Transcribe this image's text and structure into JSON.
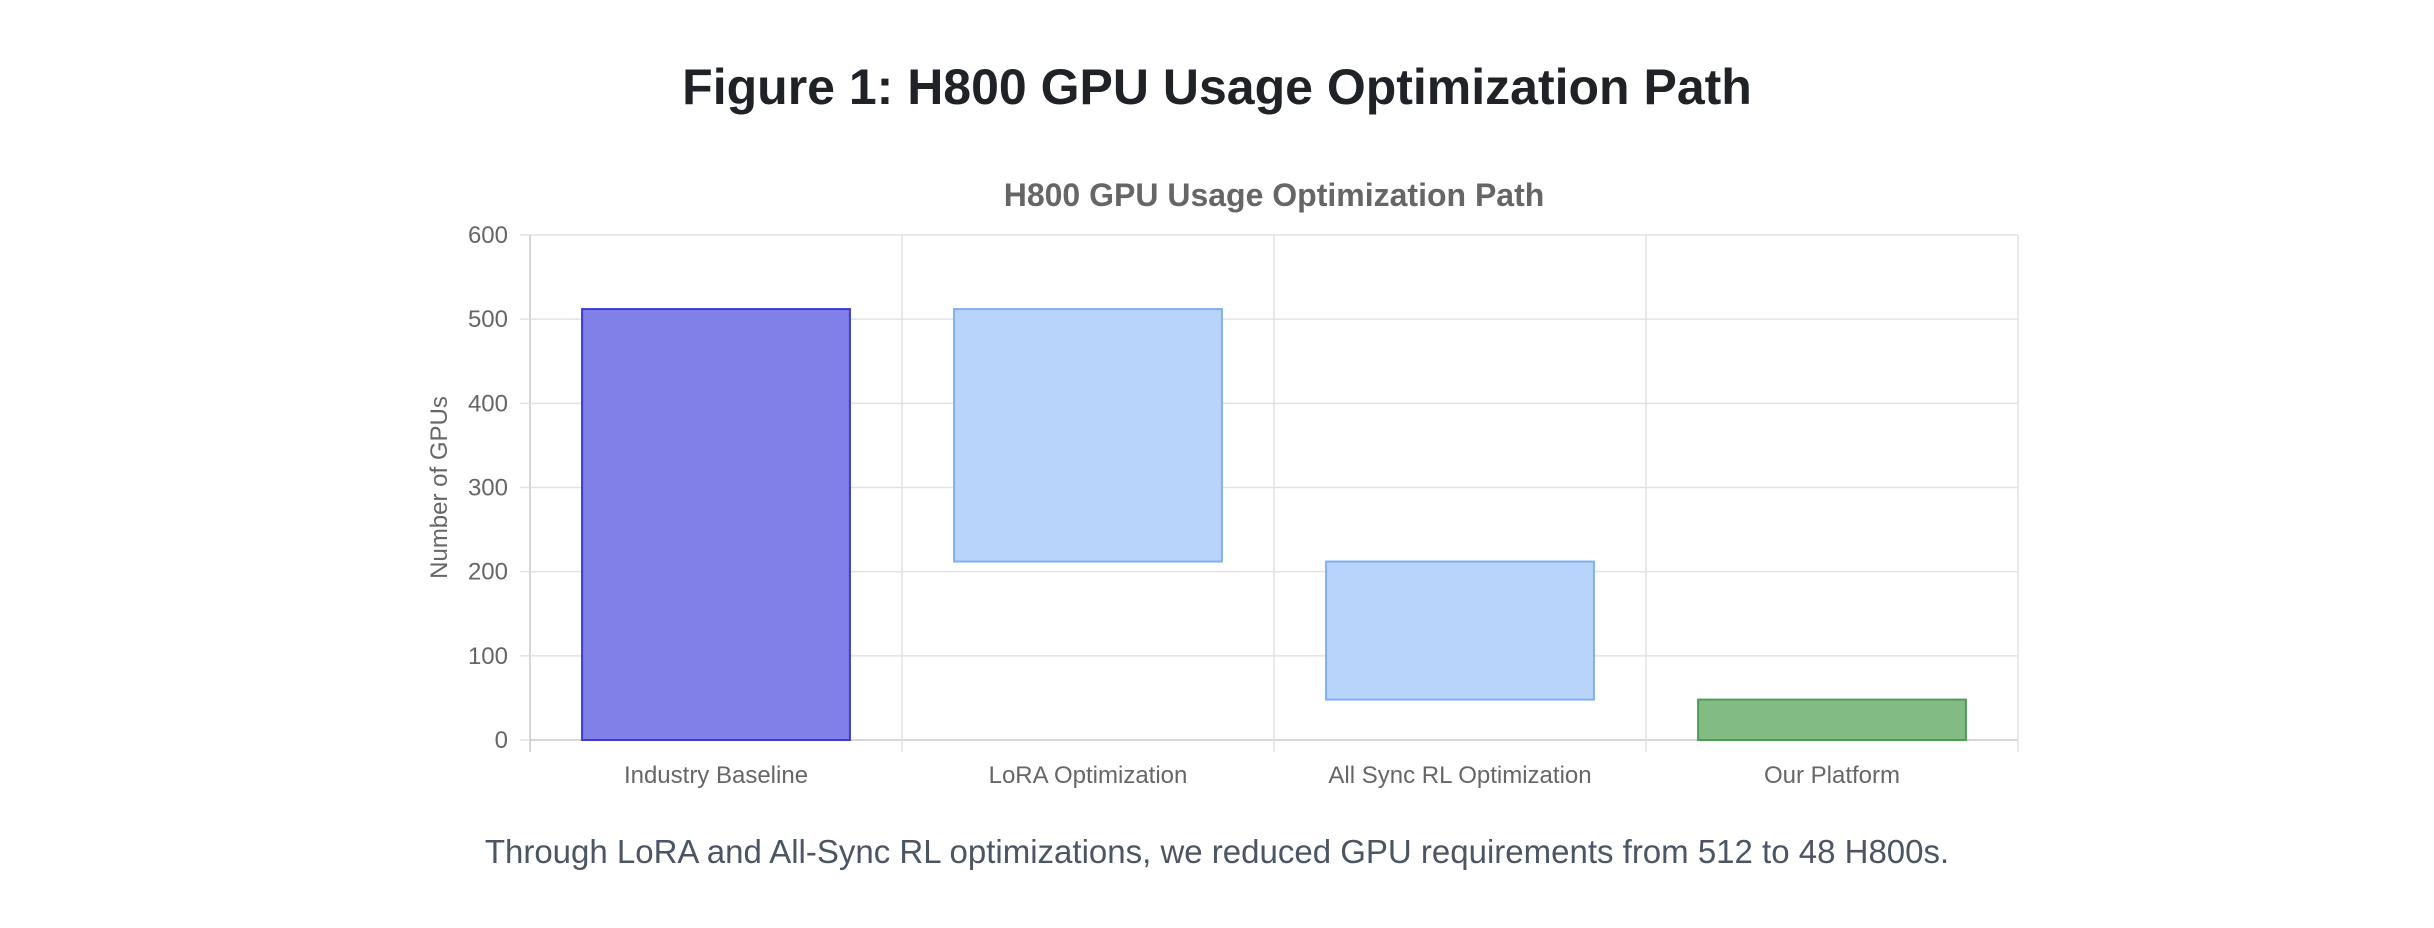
{
  "figure": {
    "title": "Figure 1: H800 GPU Usage Optimization Path",
    "caption": "Through LoRA and All-Sync RL optimizations, we reduced GPU requirements from 512 to 48 H800s."
  },
  "chart_data": {
    "type": "bar",
    "subtype": "waterfall",
    "title": "H800 GPU Usage Optimization Path",
    "xlabel": "",
    "ylabel": "Number of GPUs",
    "ylim": [
      0,
      600
    ],
    "yticks": [
      0,
      100,
      200,
      300,
      400,
      500,
      600
    ],
    "categories": [
      "Industry Baseline",
      "LoRA Optimization",
      "All Sync RL Optimization",
      "Our Platform"
    ],
    "bars": [
      {
        "category": "Industry Baseline",
        "start": 0,
        "end": 512,
        "role": "total"
      },
      {
        "category": "LoRA Optimization",
        "start": 212,
        "end": 512,
        "role": "decrease"
      },
      {
        "category": "All Sync RL Optimization",
        "start": 48,
        "end": 212,
        "role": "decrease"
      },
      {
        "category": "Our Platform",
        "start": 0,
        "end": 48,
        "role": "result"
      }
    ],
    "colors": {
      "total_fill": "#8080e8",
      "total_stroke": "#3b3bd1",
      "decrease_fill": "#b8d4fa",
      "decrease_stroke": "#7fb0ee",
      "result_fill": "#82bb84",
      "result_stroke": "#4f9c54",
      "grid": "#e2e2e2",
      "axis": "#c8c8c8"
    },
    "grid": true,
    "legend": "none"
  }
}
